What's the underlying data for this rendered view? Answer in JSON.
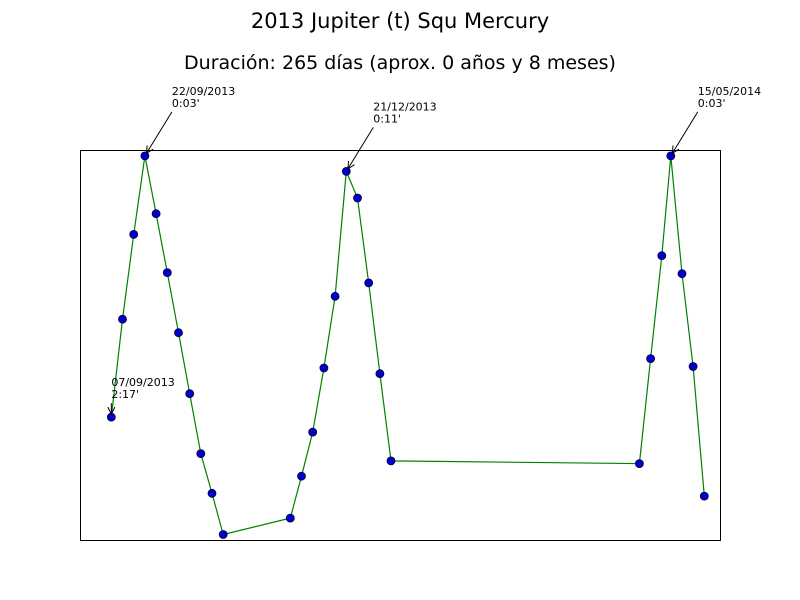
{
  "chart_data": {
    "type": "line",
    "title": "2013 Jupiter (t) Squ Mercury",
    "subtitle": "Duración: 265 días (aprox. 0 años y 8 meses)",
    "xlabel": "",
    "ylabel": "",
    "grid": false,
    "colors": {
      "line": "#008000",
      "marker_fill": "#0000cc",
      "marker_edge": "#000033"
    },
    "series": [
      {
        "points": [
          {
            "date": "2013-09-07",
            "orb_deg": 2.283
          },
          {
            "date": "2013-09-12",
            "orb_deg": 1.446
          },
          {
            "date": "2013-09-17",
            "orb_deg": 0.721
          },
          {
            "date": "2013-09-22",
            "orb_deg": 0.05
          },
          {
            "date": "2013-09-27",
            "orb_deg": 0.544
          },
          {
            "date": "2013-10-02",
            "orb_deg": 1.048
          },
          {
            "date": "2013-10-07",
            "orb_deg": 1.561
          },
          {
            "date": "2013-10-12",
            "orb_deg": 2.083
          },
          {
            "date": "2013-10-17",
            "orb_deg": 2.595
          },
          {
            "date": "2013-10-22",
            "orb_deg": 2.934
          },
          {
            "date": "2013-10-27",
            "orb_deg": 3.286
          },
          {
            "date": "2013-11-26",
            "orb_deg": 3.146
          },
          {
            "date": "2013-12-01",
            "orb_deg": 2.788
          },
          {
            "date": "2013-12-06",
            "orb_deg": 2.411
          },
          {
            "date": "2013-12-11",
            "orb_deg": 1.863
          },
          {
            "date": "2013-12-16",
            "orb_deg": 1.25
          },
          {
            "date": "2013-12-21",
            "orb_deg": 0.183
          },
          {
            "date": "2013-12-26",
            "orb_deg": 0.41
          },
          {
            "date": "2013-12-31",
            "orb_deg": 1.136
          },
          {
            "date": "2014-01-05",
            "orb_deg": 1.912
          },
          {
            "date": "2014-01-10",
            "orb_deg": 2.657
          },
          {
            "date": "2014-05-01",
            "orb_deg": 2.68
          },
          {
            "date": "2014-05-06",
            "orb_deg": 1.783
          },
          {
            "date": "2014-05-11",
            "orb_deg": 0.903
          },
          {
            "date": "2014-05-15",
            "orb_deg": 0.05
          },
          {
            "date": "2014-05-20",
            "orb_deg": 1.057
          },
          {
            "date": "2014-05-25",
            "orb_deg": 1.85
          },
          {
            "date": "2014-05-30",
            "orb_deg": 2.958
          }
        ]
      }
    ],
    "xlim": [
      "2013-08-24",
      "2014-06-06"
    ],
    "ylim": [
      0,
      3.333
    ],
    "y_inverted": true,
    "annotations": [
      {
        "date": "2013-09-07",
        "orb_deg": 2.283,
        "text_line1": "07/09/2013",
        "text_line2": "2:17'"
      },
      {
        "date": "2013-09-22",
        "orb_deg": 0.05,
        "text_line1": "22/09/2013",
        "text_line2": "0:03'"
      },
      {
        "date": "2013-12-21",
        "orb_deg": 0.183,
        "text_line1": "21/12/2013",
        "text_line2": "0:11'"
      },
      {
        "date": "2014-05-15",
        "orb_deg": 0.05,
        "text_line1": "15/05/2014",
        "text_line2": "0:03'"
      }
    ]
  }
}
